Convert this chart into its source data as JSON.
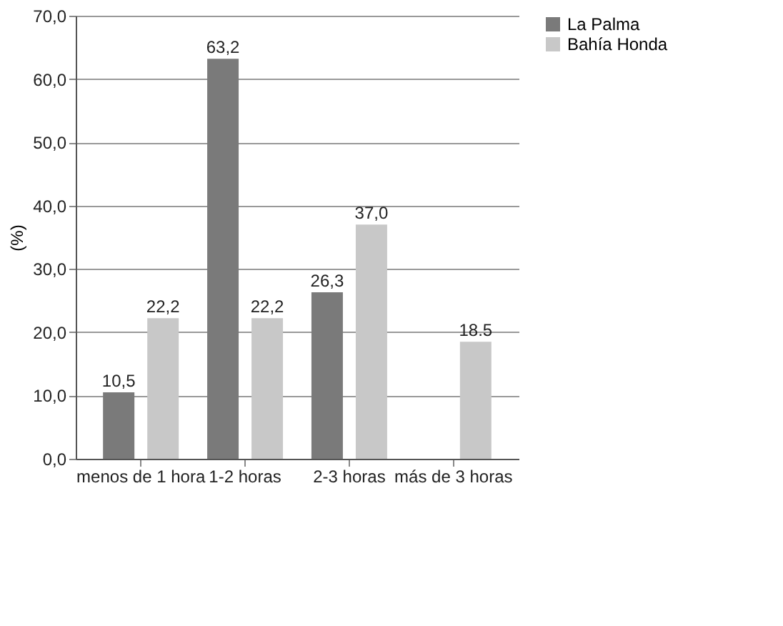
{
  "chart_data": {
    "type": "bar",
    "ylabel": "(%)",
    "categories": [
      "menos de 1 hora",
      "1-2 horas",
      "2-3 horas",
      "más de 3 horas"
    ],
    "series": [
      {
        "name": "La Palma",
        "color": "#7a7a7a",
        "values": [
          10.5,
          63.2,
          26.3,
          null
        ],
        "value_labels": [
          "10,5",
          "63,2",
          "26,3",
          null
        ]
      },
      {
        "name": "Bahía Honda",
        "color": "#c8c8c8",
        "values": [
          22.2,
          22.2,
          37.0,
          18.5
        ],
        "value_labels": [
          "22,2",
          "22,2",
          "37,0",
          "18.5"
        ]
      }
    ],
    "ylim": [
      0,
      70
    ],
    "yticks": [
      {
        "value": 0,
        "label": "0,0"
      },
      {
        "value": 10,
        "label": "10,0"
      },
      {
        "value": 20,
        "label": "20,0"
      },
      {
        "value": 30,
        "label": "30,0"
      },
      {
        "value": 40,
        "label": "40,0"
      },
      {
        "value": 50,
        "label": "50,0"
      },
      {
        "value": 60,
        "label": "60,0"
      },
      {
        "value": 70,
        "label": "70,0"
      }
    ],
    "grid": "y",
    "legend": "right"
  }
}
